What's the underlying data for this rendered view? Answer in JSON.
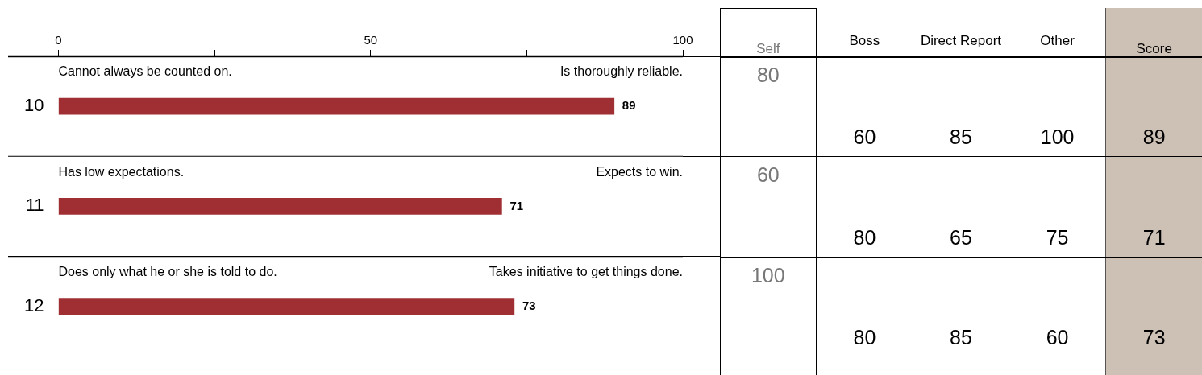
{
  "chart_data": [
    {
      "type": "bar",
      "orientation": "horizontal",
      "categories": [
        "10",
        "11",
        "12"
      ],
      "values": [
        89,
        71,
        73
      ],
      "color": "#a02f33",
      "xlim": [
        0,
        100
      ],
      "xticks": [
        0,
        {
          "value": 25,
          "label": null
        },
        50,
        {
          "value": 75,
          "label": null
        },
        100
      ],
      "data_labels": true,
      "annotations": [
        "Cannot always be counted on.",
        "Is thoroughly reliable.",
        "Has low expectations.",
        "Expects to win.",
        "Does only what he or she is told to do.",
        "Takes initiative to get things done."
      ]
    },
    {
      "type": "other",
      "categories": [
        "Self",
        "Boss",
        "Direct Report",
        "Other",
        "Score"
      ],
      "annotations": [
        "80",
        "60",
        "85",
        "100",
        "89",
        "60",
        "80",
        "65",
        "75",
        "71",
        "100",
        "80",
        "85",
        "60",
        "73"
      ]
    }
  ]
}
